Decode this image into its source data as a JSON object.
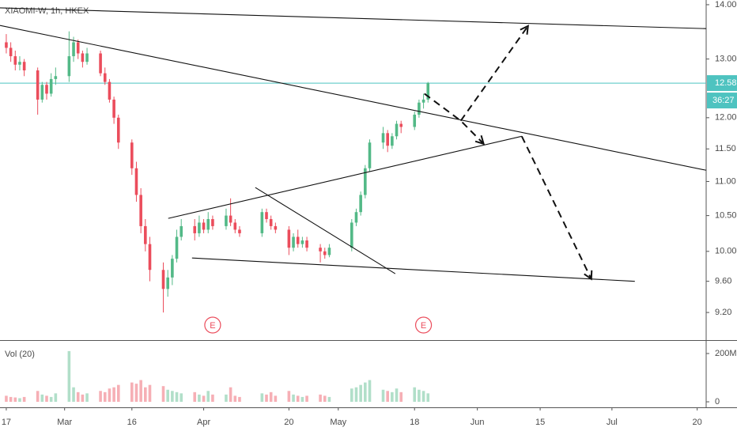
{
  "chart_data": {
    "type": "candlestick",
    "title": "XIAOMI-W, 1h, HKEX",
    "volume_title": "Vol (20)",
    "log_scale": true,
    "grid": false,
    "up_color": "#53b987",
    "down_color": "#eb4d5c",
    "x": [
      0,
      1,
      2,
      3,
      4,
      7,
      8,
      9,
      10,
      11,
      14,
      15,
      16,
      17,
      18,
      21,
      22,
      23,
      24,
      25,
      28,
      29,
      30,
      31,
      32,
      35,
      36,
      37,
      38,
      39,
      42,
      43,
      44,
      45,
      46,
      49,
      50,
      51,
      52,
      57,
      58,
      59,
      60,
      63,
      64,
      65,
      66,
      67,
      70,
      71,
      72,
      77,
      78,
      79,
      80,
      81,
      84,
      85,
      86,
      87,
      88,
      91,
      92,
      93,
      94
    ],
    "open": [
      13.3,
      13.2,
      13.05,
      12.9,
      12.95,
      12.8,
      12.3,
      12.55,
      12.4,
      12.65,
      12.7,
      13.05,
      13.3,
      13.1,
      12.95,
      13.1,
      12.75,
      12.6,
      12.3,
      12.0,
      11.6,
      11.2,
      10.8,
      10.35,
      10.1,
      9.75,
      9.5,
      9.65,
      9.9,
      10.2,
      10.35,
      10.25,
      10.4,
      10.3,
      10.45,
      10.35,
      10.5,
      10.4,
      10.3,
      10.25,
      10.55,
      10.45,
      10.35,
      10.3,
      10.05,
      10.2,
      10.1,
      10.15,
      10.05,
      10.0,
      9.95,
      10.05,
      10.4,
      10.55,
      10.8,
      11.2,
      11.6,
      11.75,
      11.55,
      11.7,
      11.9,
      11.85,
      12.05,
      12.25,
      12.3
    ],
    "high": [
      13.45,
      13.3,
      13.15,
      13.05,
      13.0,
      12.85,
      12.6,
      12.6,
      12.75,
      12.85,
      13.5,
      13.4,
      13.35,
      13.15,
      13.2,
      13.15,
      12.85,
      12.65,
      12.35,
      12.05,
      11.65,
      11.3,
      10.9,
      10.45,
      10.2,
      9.85,
      9.75,
      9.95,
      10.3,
      10.45,
      10.45,
      10.5,
      10.45,
      10.55,
      10.5,
      10.6,
      10.75,
      10.45,
      10.35,
      10.6,
      10.6,
      10.5,
      10.4,
      10.35,
      10.25,
      10.3,
      10.2,
      10.2,
      10.1,
      10.05,
      10.1,
      10.45,
      10.6,
      10.85,
      11.25,
      11.65,
      11.85,
      11.8,
      11.75,
      11.95,
      11.95,
      12.1,
      12.3,
      12.4,
      12.6
    ],
    "low": [
      13.1,
      12.95,
      12.8,
      12.8,
      12.7,
      12.05,
      12.25,
      12.3,
      12.35,
      12.55,
      12.6,
      12.95,
      13.0,
      12.85,
      12.9,
      12.7,
      12.55,
      12.25,
      11.9,
      11.5,
      11.1,
      10.7,
      10.25,
      10.0,
      9.6,
      9.2,
      9.4,
      9.55,
      9.85,
      10.15,
      10.15,
      10.2,
      10.25,
      10.25,
      10.3,
      10.3,
      10.35,
      10.25,
      10.2,
      10.2,
      10.4,
      10.3,
      10.25,
      9.95,
      10.0,
      10.05,
      10.05,
      10.0,
      9.85,
      9.9,
      9.92,
      10.0,
      10.35,
      10.5,
      10.75,
      11.15,
      11.5,
      11.45,
      11.5,
      11.65,
      11.75,
      11.8,
      12.0,
      12.15,
      12.25
    ],
    "close": [
      13.2,
      13.05,
      12.9,
      12.95,
      12.8,
      12.3,
      12.55,
      12.4,
      12.65,
      12.7,
      13.05,
      13.3,
      13.1,
      12.95,
      13.1,
      12.75,
      12.6,
      12.3,
      12.0,
      11.6,
      11.2,
      10.8,
      10.35,
      10.1,
      9.75,
      9.5,
      9.65,
      9.9,
      10.2,
      10.35,
      10.25,
      10.4,
      10.3,
      10.45,
      10.35,
      10.5,
      10.4,
      10.3,
      10.25,
      10.55,
      10.45,
      10.35,
      10.3,
      10.05,
      10.2,
      10.1,
      10.15,
      10.05,
      10.0,
      9.95,
      10.05,
      10.4,
      10.55,
      10.8,
      11.2,
      11.6,
      11.75,
      11.55,
      11.7,
      11.9,
      11.85,
      12.05,
      12.25,
      12.3,
      12.58
    ],
    "volume": [
      25000000,
      20000000,
      18000000,
      15000000,
      20000000,
      45000000,
      30000000,
      25000000,
      20000000,
      35000000,
      210000000,
      60000000,
      40000000,
      30000000,
      35000000,
      45000000,
      40000000,
      55000000,
      60000000,
      70000000,
      80000000,
      75000000,
      90000000,
      60000000,
      70000000,
      65000000,
      50000000,
      45000000,
      40000000,
      35000000,
      40000000,
      30000000,
      25000000,
      45000000,
      30000000,
      30000000,
      60000000,
      25000000,
      20000000,
      35000000,
      30000000,
      40000000,
      25000000,
      45000000,
      30000000,
      25000000,
      20000000,
      25000000,
      30000000,
      25000000,
      20000000,
      55000000,
      60000000,
      70000000,
      80000000,
      90000000,
      50000000,
      45000000,
      40000000,
      55000000,
      40000000,
      60000000,
      50000000,
      45000000,
      35000000
    ],
    "xlim": [
      -1.4,
      156
    ],
    "xticks": [
      {
        "value": 0,
        "label": "17"
      },
      {
        "value": 13,
        "label": "Mar"
      },
      {
        "value": 28,
        "label": "16"
      },
      {
        "value": 44,
        "label": "Apr"
      },
      {
        "value": 63,
        "label": "20"
      },
      {
        "value": 74,
        "label": "May"
      },
      {
        "value": 91,
        "label": "18"
      },
      {
        "value": 105,
        "label": "Jun"
      },
      {
        "value": 119,
        "label": "15"
      },
      {
        "value": 135,
        "label": "Jul"
      },
      {
        "value": 154,
        "label": "20"
      }
    ],
    "ylim": [
      8.86,
      14.09
    ],
    "yticks": [
      {
        "value": 14,
        "label": "14.00"
      },
      {
        "value": 13,
        "label": "13.00"
      },
      {
        "value": 12,
        "label": "12.00"
      },
      {
        "value": 11.5,
        "label": "11.50"
      },
      {
        "value": 11,
        "label": "11.00"
      },
      {
        "value": 10.5,
        "label": "10.50"
      },
      {
        "value": 10,
        "label": "10.00"
      },
      {
        "value": 9.6,
        "label": "9.60"
      },
      {
        "value": 9.2,
        "label": "9.20"
      }
    ],
    "volume_ylim": [
      -13000000,
      249000000
    ],
    "volume_yticks": [
      {
        "value": 200000000,
        "label": "200M"
      },
      0
    ],
    "last_price": 12.58,
    "last_price_color": "#4ec3c0",
    "countdown": "36:27",
    "events": [
      {
        "x": 46,
        "label": "E"
      },
      {
        "x": 93,
        "label": "E"
      }
    ],
    "drawings": [
      {
        "points": [
          [
            -1.4,
            13.94
          ],
          [
            156,
            13.55
          ]
        ],
        "dashed": false
      },
      {
        "points": [
          [
            -1.4,
            13.61
          ],
          [
            156,
            11.17
          ]
        ],
        "dashed": false
      },
      {
        "points": [
          [
            36.1,
            10.46
          ],
          [
            114.9,
            11.7
          ]
        ],
        "dashed": false
      },
      {
        "points": [
          [
            41.4,
            9.91
          ],
          [
            140.1,
            9.6
          ]
        ],
        "dashed": false
      },
      {
        "points": [
          [
            55.5,
            10.91
          ],
          [
            86.7,
            9.7
          ]
        ],
        "dashed": false
      },
      {
        "points": [
          [
            93.2,
            12.4
          ],
          [
            101.3,
            11.95
          ],
          [
            106.4,
            11.58
          ]
        ],
        "dashed": true
      },
      {
        "points": [
          [
            101.3,
            11.95
          ],
          [
            116.3,
            13.6
          ]
        ],
        "dashed": true
      },
      {
        "points": [
          [
            114.9,
            11.7
          ],
          [
            130.4,
            9.63
          ]
        ],
        "dashed": true
      }
    ]
  }
}
